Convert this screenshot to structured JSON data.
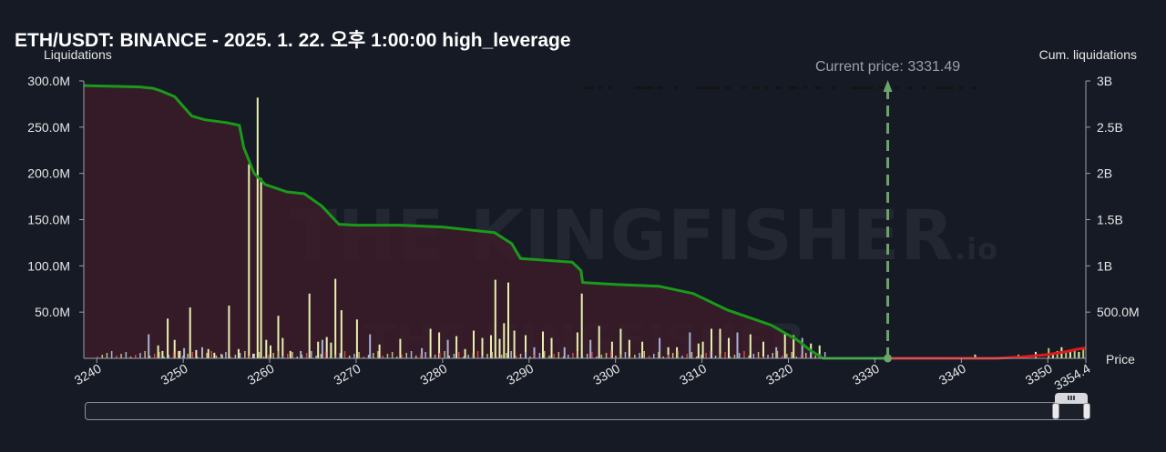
{
  "title": "ETH/USDT: BINANCE - 2025. 1. 22. 오후 1:00:00 high_leverage",
  "watermark_text": "THE KINGFISHER",
  "watermark_suffix": ".io",
  "colors": {
    "background": "#161a25",
    "cumulative_short_side": "#1a9a1a",
    "cumulative_long_side": "#e01b1b",
    "area_fill": "#3a1c28",
    "bar_primary": "#e8f0b0",
    "bar_secondary": "#a9b4d6",
    "bar_red": "#d04a4a",
    "current_price_line": "#6aa56a"
  },
  "chart_data": {
    "type": "bar",
    "y_left_label": "Liquidations",
    "y_right_label": "Cum. liquidations",
    "x_label": "Price",
    "current_price_label": "Current price: 3331.49",
    "current_price": 3331.49,
    "xlim": [
      3238.5,
      3354.4
    ],
    "ylim_left": [
      0,
      300000000
    ],
    "ylim_right": [
      0,
      3000000000
    ],
    "x_ticks": [
      "3240",
      "3250",
      "3260",
      "3270",
      "3280",
      "3290",
      "3300",
      "3310",
      "3320",
      "3330",
      "3340",
      "3350",
      "3354.4"
    ],
    "x_tick_values": [
      3240,
      3250,
      3260,
      3270,
      3280,
      3290,
      3300,
      3310,
      3320,
      3330,
      3340,
      3350,
      3354.4
    ],
    "y_left_ticks": [
      "300.0M",
      "250.0M",
      "200.0M",
      "150.0M",
      "100.0M",
      "50.0M"
    ],
    "y_left_tick_values": [
      300000000,
      250000000,
      200000000,
      150000000,
      100000000,
      50000000
    ],
    "y_right_ticks": [
      "3B",
      "2.5B",
      "2B",
      "1.5B",
      "1B",
      "500.0M"
    ],
    "y_right_tick_values": [
      3000000000,
      2500000000,
      2000000000,
      1500000000,
      1000000000,
      500000000
    ],
    "liquidation_bars": {
      "x": [
        3246.0,
        3247.1,
        3247.6,
        3248.2,
        3249.0,
        3249.6,
        3250.1,
        3250.8,
        3251.5,
        3252.2,
        3252.9,
        3253.6,
        3254.5,
        3255.3,
        3256.4,
        3257.6,
        3258.1,
        3258.6,
        3259.0,
        3259.6,
        3260.1,
        3261.0,
        3261.5,
        3262.4,
        3263.6,
        3264.6,
        3265.6,
        3266.1,
        3266.6,
        3267.1,
        3267.6,
        3268.3,
        3270.1,
        3271.6,
        3272.7,
        3275.1,
        3277.6,
        3278.6,
        3279.6,
        3280.6,
        3281.6,
        3282.6,
        3283.6,
        3284.6,
        3285.6,
        3286.1,
        3286.6,
        3287.1,
        3287.6,
        3288.3,
        3289.6,
        3290.6,
        3291.6,
        3292.6,
        3294.1,
        3295.6,
        3296.1,
        3297.1,
        3298.1,
        3299.6,
        3300.6,
        3301.6,
        3303.1,
        3305.1,
        3306.1,
        3307.1,
        3308.6,
        3309.6,
        3310.1,
        3311.1,
        3312.1,
        3313.1,
        3314.1,
        3315.6,
        3317.1,
        3318.6,
        3319.6,
        3320.6,
        3321.6,
        3322.6,
        3323.6,
        3341.6,
        3346.6,
        3348.6,
        3350.1,
        3350.6,
        3351.1,
        3351.6,
        3352.1,
        3352.6,
        3353.1,
        3353.6,
        3354.1
      ],
      "values": [
        26000000,
        14000000,
        8000000,
        43000000,
        20000000,
        8000000,
        11000000,
        55000000,
        9000000,
        12000000,
        10000000,
        6000000,
        4000000,
        57000000,
        10000000,
        210000000,
        5000000,
        282000000,
        195000000,
        20000000,
        14000000,
        46000000,
        22000000,
        8000000,
        8000000,
        70000000,
        18000000,
        20000000,
        23000000,
        17000000,
        86000000,
        52000000,
        42000000,
        26000000,
        15000000,
        21000000,
        11000000,
        32000000,
        28000000,
        20000000,
        24000000,
        10000000,
        30000000,
        22000000,
        25000000,
        85000000,
        21000000,
        38000000,
        82000000,
        30000000,
        25000000,
        12000000,
        29000000,
        22000000,
        12000000,
        28000000,
        70000000,
        20000000,
        35000000,
        18000000,
        32000000,
        20000000,
        18000000,
        22000000,
        12000000,
        12000000,
        28000000,
        16000000,
        18000000,
        32000000,
        32000000,
        22000000,
        28000000,
        26000000,
        18000000,
        12000000,
        28000000,
        25000000,
        22000000,
        16000000,
        14000000,
        4000000,
        4000000,
        7000000,
        11000000,
        6000000,
        8000000,
        12000000,
        6000000,
        9000000,
        10000000,
        7000000,
        12000000
      ]
    },
    "series": [
      {
        "name": "",
        "side": "short",
        "x": [
          3238.5,
          3243,
          3245,
          3246.5,
          3247.5,
          3249,
          3251,
          3252.5,
          3255,
          3256.5,
          3257,
          3258.2,
          3259.5,
          3262,
          3264,
          3266,
          3268,
          3270,
          3275,
          3280,
          3284,
          3286,
          3288,
          3289,
          3292,
          3295,
          3296,
          3296.2,
          3300,
          3305,
          3309,
          3313,
          3318,
          3321,
          3322.5,
          3324,
          3331.49
        ],
        "values": [
          2950000000,
          2940000000,
          2935000000,
          2920000000,
          2890000000,
          2830000000,
          2620000000,
          2580000000,
          2550000000,
          2520000000,
          2280000000,
          2000000000,
          1880000000,
          1800000000,
          1780000000,
          1650000000,
          1450000000,
          1440000000,
          1440000000,
          1420000000,
          1380000000,
          1360000000,
          1240000000,
          1080000000,
          1060000000,
          1040000000,
          950000000,
          820000000,
          800000000,
          780000000,
          700000000,
          520000000,
          360000000,
          200000000,
          90000000,
          0,
          0
        ]
      },
      {
        "name": "",
        "side": "long",
        "x": [
          3331.49,
          3344,
          3347,
          3350,
          3352,
          3353.5,
          3354.4
        ],
        "values": [
          0,
          0,
          15000000,
          40000000,
          70000000,
          100000000,
          110000000
        ]
      }
    ],
    "legend": "top-right, partially obscured"
  }
}
